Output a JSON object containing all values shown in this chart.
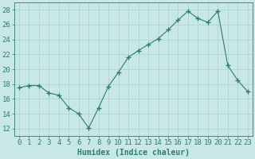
{
  "x": [
    0,
    1,
    2,
    3,
    4,
    5,
    6,
    7,
    8,
    9,
    10,
    11,
    12,
    13,
    14,
    15,
    16,
    17,
    18,
    19,
    20,
    21,
    22,
    23
  ],
  "y": [
    17.5,
    17.8,
    17.8,
    16.8,
    16.5,
    14.8,
    14.0,
    12.1,
    14.8,
    17.7,
    19.6,
    21.6,
    22.5,
    23.3,
    24.1,
    25.3,
    26.6,
    27.8,
    26.8,
    26.3,
    27.8,
    20.5,
    18.5,
    17.0
  ],
  "line_color": "#2e7d6e",
  "marker": "+",
  "marker_size": 4,
  "bg_color": "#c8e8e8",
  "grid_color": "#b0d4d4",
  "xlabel": "Humidex (Indice chaleur)",
  "ylim": [
    11,
    29
  ],
  "xlim": [
    -0.5,
    23.5
  ],
  "yticks": [
    12,
    14,
    16,
    18,
    20,
    22,
    24,
    26,
    28
  ],
  "xticks": [
    0,
    1,
    2,
    3,
    4,
    5,
    6,
    7,
    8,
    9,
    10,
    11,
    12,
    13,
    14,
    15,
    16,
    17,
    18,
    19,
    20,
    21,
    22,
    23
  ],
  "xlabel_fontsize": 7,
  "tick_fontsize": 6.5
}
